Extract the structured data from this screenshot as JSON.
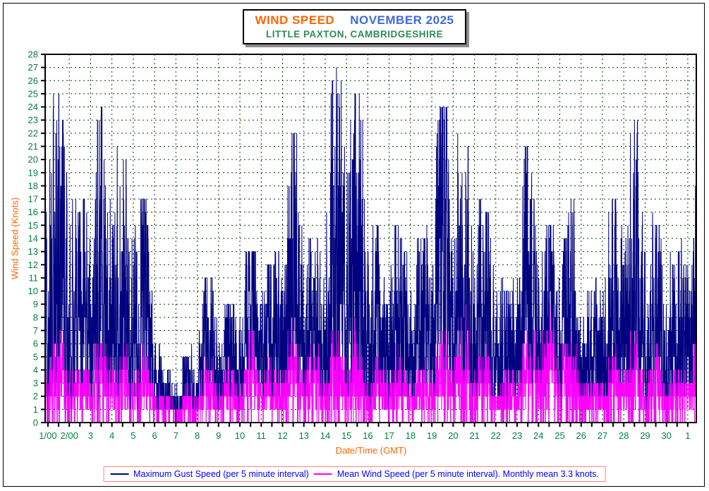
{
  "header": {
    "title_left": "WIND SPEED",
    "title_right": "NOVEMBER 2025",
    "subtitle": "LITTLE PAXTON, CAMBRIDGESHIRE"
  },
  "legend": {
    "items": [
      {
        "label": "Maximum Gust Speed (per 5 minute interval)",
        "color": "#000080"
      },
      {
        "label": "Mean Wind Speed (per 5 minute interval). Monthly mean 3.3 knots.",
        "color": "#FF00FF"
      }
    ],
    "border_color": "#FF8080",
    "text_color": "#0000FF"
  },
  "colors": {
    "max_gust": "#000080",
    "mean_wind": "#FF00FF",
    "grid": "#004000",
    "tick_labels": "#008040",
    "axis_titles": "#FF6600",
    "title_left": "#FF6600",
    "title_right": "#4169E1",
    "subtitle": "#2E8B57",
    "axis_line": "#000000"
  },
  "chart_data": {
    "type": "line",
    "title": "WIND SPEED NOVEMBER 2025",
    "subtitle": "LITTLE PAXTON, CAMBRIDGESHIRE",
    "xlabel": "Date/Time (GMT)",
    "ylabel": "Wind Speed (Knots)",
    "ylim": [
      0,
      28
    ],
    "y_tick_step": 1,
    "x_tick_labels": [
      "1/00",
      "2/00",
      "3",
      "4",
      "5",
      "6",
      "7",
      "8",
      "9",
      "10",
      "11",
      "12",
      "13",
      "14",
      "15",
      "16",
      "17",
      "18",
      "19",
      "20",
      "21",
      "22",
      "23",
      "24",
      "25",
      "26",
      "27",
      "28",
      "29",
      "30",
      "1"
    ],
    "x_minor_tick_days": 0.5,
    "x_range_days": [
      0.87,
      31.4
    ],
    "sample_interval_minutes": 5,
    "monthly_mean_knots": 3.3,
    "grid": {
      "show": true,
      "style": "dashed",
      "color": "#004000"
    },
    "legend_position": "bottom",
    "series": [
      {
        "name": "Maximum Gust Speed (per 5 minute interval)",
        "color": "#000080",
        "daily_peak_knots": [
          25,
          16,
          24,
          20,
          17,
          4,
          5,
          11,
          9,
          13,
          12,
          22.5,
          13,
          27,
          25,
          15,
          14.5,
          13.5,
          24,
          22,
          16.5,
          10,
          21,
          15,
          17.5,
          10,
          17,
          23.5,
          15,
          13,
          18
        ]
      },
      {
        "name": "Mean Wind Speed (per 5 minute interval)",
        "color": "#FF00FF",
        "daily_peak_knots": [
          8,
          5,
          8,
          7,
          6,
          2.5,
          3,
          5.5,
          4.5,
          7,
          5,
          8,
          6.5,
          8.5,
          7.5,
          5.5,
          6,
          5,
          8,
          9,
          6,
          4,
          8,
          9.5,
          8.5,
          4,
          6.5,
          7.5,
          6,
          5,
          6.5
        ]
      }
    ]
  }
}
